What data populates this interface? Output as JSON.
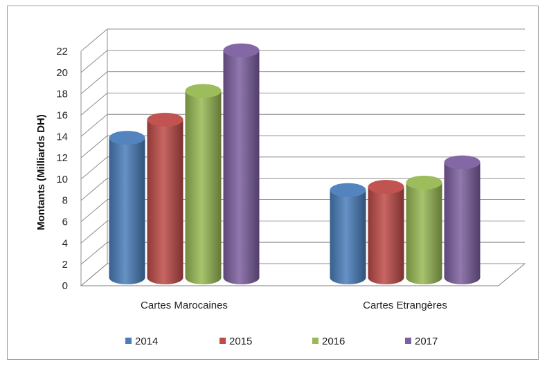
{
  "chart_data": {
    "type": "bar",
    "style": "3d-cylinder",
    "title": "",
    "xlabel": "",
    "ylabel": "Montants (Milliards DH)",
    "ylim": [
      0,
      22
    ],
    "yticks": [
      0,
      2,
      4,
      6,
      8,
      10,
      12,
      14,
      16,
      18,
      20,
      22
    ],
    "grid": true,
    "legend_position": "bottom",
    "categories": [
      "Cartes Marocaines",
      "Cartes Etrangères"
    ],
    "series": [
      {
        "name": "2014",
        "color": "#4a7ebb",
        "values": [
          13.1,
          8.2
        ]
      },
      {
        "name": "2015",
        "color": "#be4b48",
        "values": [
          14.8,
          8.5
        ]
      },
      {
        "name": "2016",
        "color": "#98b954",
        "values": [
          17.5,
          8.9
        ]
      },
      {
        "name": "2017",
        "color": "#7d60a0",
        "values": [
          21.3,
          10.8
        ]
      }
    ]
  }
}
